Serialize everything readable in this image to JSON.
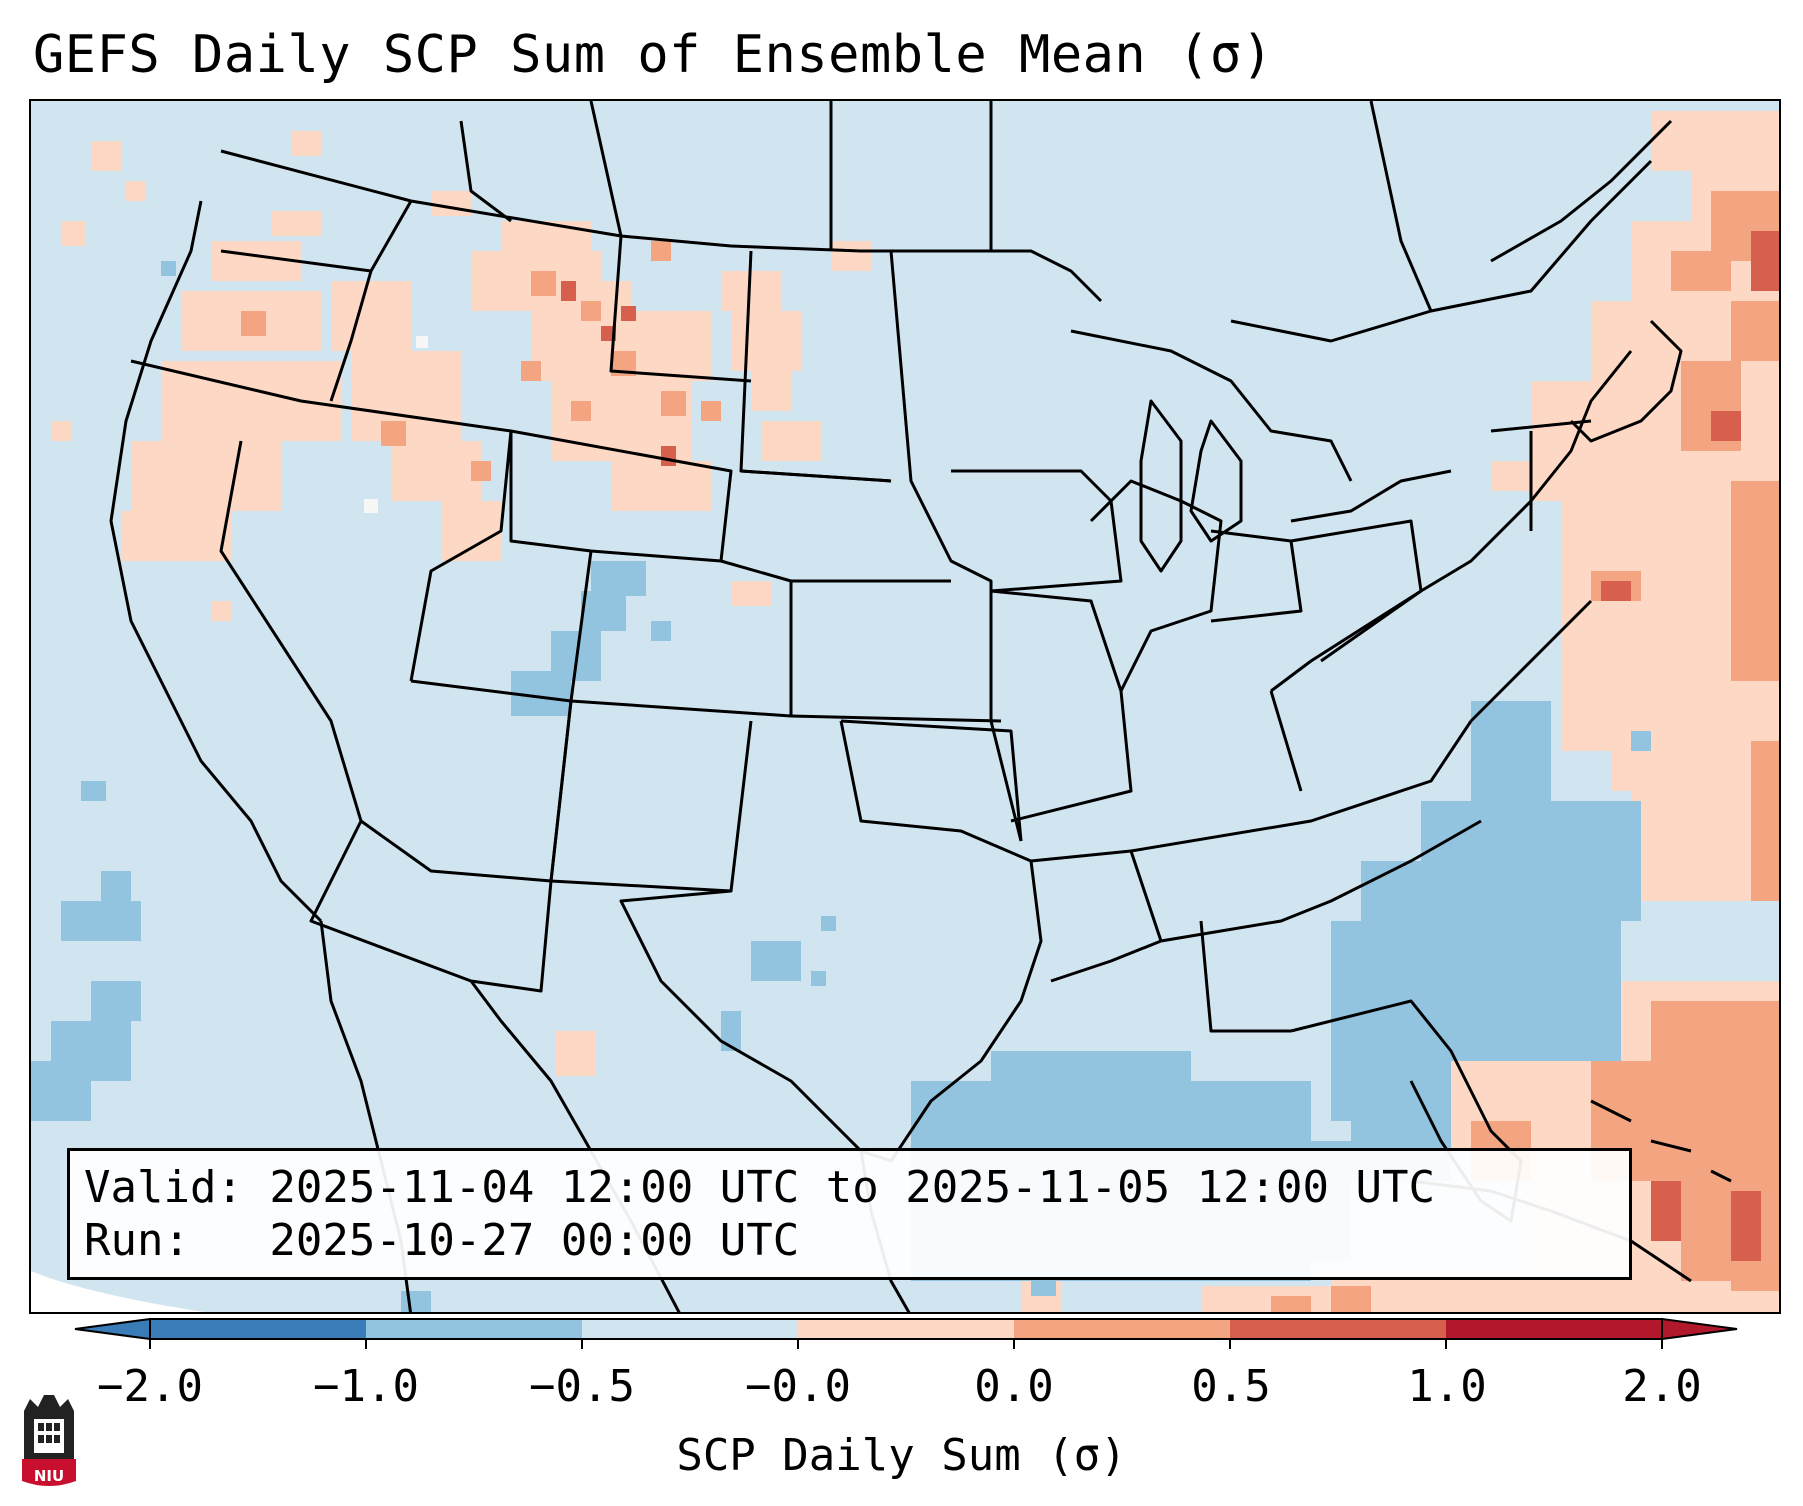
{
  "title": "GEFS Daily SCP Sum of Ensemble Mean (σ)",
  "info": {
    "valid_line": "Valid: 2025-11-04 12:00 UTC to 2025-11-05 12:00 UTC",
    "run_line": "Run:   2025-10-27 00:00 UTC"
  },
  "colorbar": {
    "label": "SCP Daily Sum (σ)",
    "tick_labels": [
      "−2.0",
      "−1.0",
      "−0.5",
      "−0.0",
      "0.0",
      "0.5",
      "1.0",
      "2.0"
    ],
    "colors": [
      "#3a7cb8",
      "#92c4df",
      "#d1e5f0",
      "#fdd9c5",
      "#f3a582",
      "#d6604d",
      "#b2182b"
    ],
    "extend": "both"
  },
  "map": {
    "region": "CONUS",
    "background_color": "#d1e5f0",
    "projection_note": "Lambert conformal",
    "features": [
      "state boundaries",
      "coastlines",
      "country borders"
    ]
  },
  "logo": {
    "text": "NIU",
    "color": "#c8102e"
  }
}
